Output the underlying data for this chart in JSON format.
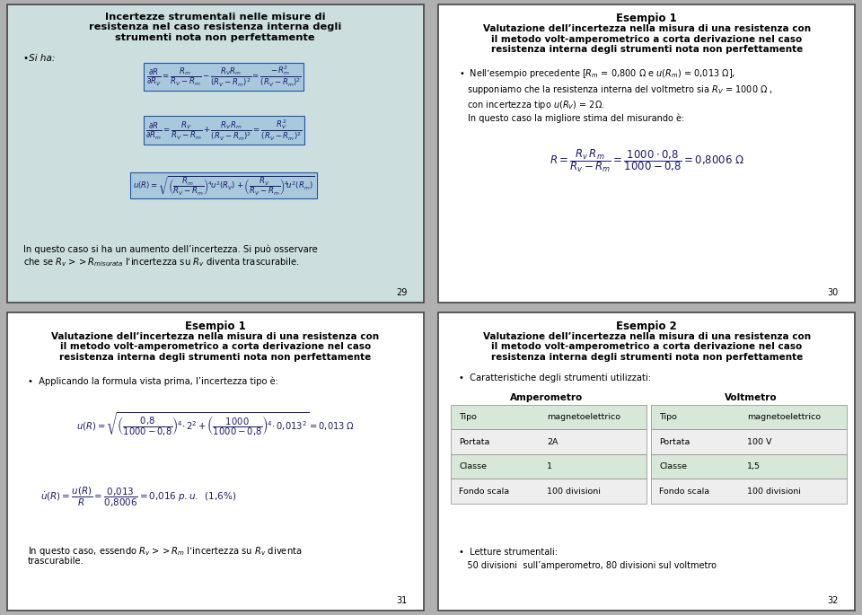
{
  "bg_color": "#b0b0b0",
  "slide1_bg": "#ccdede",
  "slide234_bg": "#ffffff",
  "border_color": "#444444",
  "text_dark": "#000000",
  "text_blue": "#1a1a6e",
  "formula_box_bg": "#a8c8dc",
  "formula_box_edge": "#2255aa",
  "slide1": {
    "title_line1": "Incertezze strumentali nelle misure di",
    "title_line2": "resistenza nel caso resistenza interna degli",
    "title_line3": "strumenti nota non perfettamente",
    "bullet": "Si ha:",
    "footer_line1": "In questo caso si ha un aumento dell’incertezza. Si può osservare",
    "footer_line2": "che se $R_v>>R_{misurata}$ l’incertezza su $R_v$ diventa trascurabile.",
    "page": "29"
  },
  "slide2": {
    "title_line1": "Esempio 1",
    "title_line2": "Valutazione dell’incertezza nella misura di una resistenza con",
    "title_line3": "il metodo volt-amperometrico a corta derivazione nel caso",
    "title_line4": "resistenza interna degli strumenti nota non perfettamente",
    "text1a": "Nell’esempio precedente [",
    "text1b": " = 0,800 Ω e ",
    "text1c": " = 0,013 Ω],",
    "text2a": "supponiamo che la resistenza interna del voltmetro sia ",
    "text2b": " = 1000 Ω ,",
    "text3a": "con incertezza tipo ",
    "text3b": " = 2Ω.",
    "text4": "In questo caso la migliore stima del misurando è:",
    "page": "30"
  },
  "slide3": {
    "title_line1": "Esempio 1",
    "title_line2": "Valutazione dell’incertezza nella misura di una resistenza con",
    "title_line3": "il metodo volt-amperometrico a corta derivazione nel caso",
    "title_line4": "resistenza interna degli strumenti nota non perfettamente",
    "bullet": "Applicando la formula vista prima, l’incertezza tipo è:",
    "footer_line1": "In questo caso, essendo $R_v>>R_m$ l’incertezza su $R_v$ diventa",
    "footer_line2": "trascurabile.",
    "page": "31"
  },
  "slide4": {
    "title_line1": "Esempio 2",
    "title_line2": "Valutazione dell’incertezza nella misura di una resistenza con",
    "title_line3": "il metodo volt-amperometrico a corta derivazione nel caso",
    "title_line4": "resistenza interna degli strumenti nota non perfettamente",
    "bullet": "Caratteristiche degli strumenti utilizzati:",
    "amp_header": "Amperometro",
    "volt_header": "Voltmetro",
    "table_col1": [
      "Tipo",
      "Portata",
      "Classe",
      "Fondo scala"
    ],
    "table_val1": [
      "magnetoelettrico",
      "2A",
      "1",
      "100 divisioni"
    ],
    "table_col2": [
      "Tipo",
      "Portata",
      "Classe",
      "Fondo scala"
    ],
    "table_val2": [
      "magnetoelettrico",
      "100 V",
      "1,5",
      "100 divisioni"
    ],
    "footer_line1": "Letture strumentali:",
    "footer_line2": "50 divisioni  sull’amperometro, 80 divisioni sul voltmetro",
    "page": "32"
  }
}
